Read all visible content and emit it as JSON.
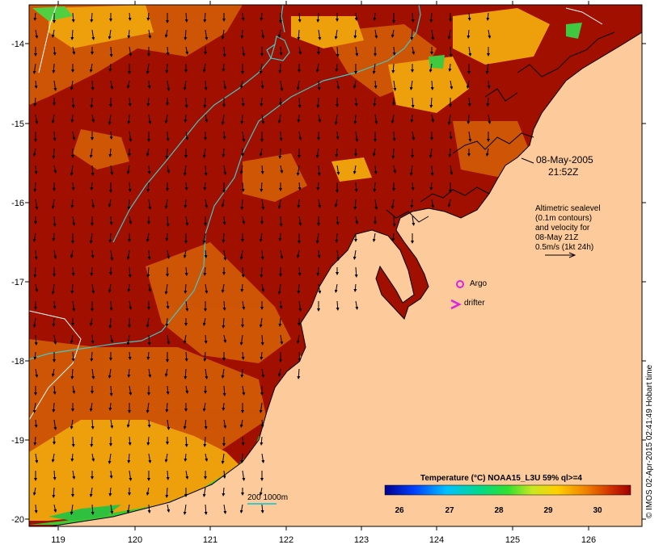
{
  "annotation": {
    "date": "08-May-2005",
    "time": "21:52Z",
    "altimetry_lines": [
      "Altimetric sealevel",
      "(0.1m contours)",
      "and velocity for",
      "08-May 21Z",
      "0.5m/s (1kt 24h)"
    ],
    "argo_label": "Argo",
    "drifter_label": "drifter",
    "isobath_label": "200  1000m"
  },
  "colorbar": {
    "title": "Temperature (°C) NOAA15_L3U 59% ql>=4",
    "ticks": [
      "26",
      "27",
      "28",
      "29",
      "30"
    ]
  },
  "axes": {
    "lon_ticks": [
      "119",
      "120",
      "121",
      "122",
      "123",
      "124",
      "125",
      "126"
    ],
    "lat_ticks": [
      "-14",
      "-15",
      "-16",
      "-17",
      "-18",
      "-19",
      "-20"
    ]
  },
  "credit": "© IMOS 02-Apr-2015 02:41:49 Hobart time",
  "colors": {
    "land": "#fdcb9b",
    "sst_hot": "#a00f00",
    "sst_warm": "#d25a06",
    "sst_mid": "#eea00c",
    "sst_cool": "#30c040",
    "contour": "#40c8c8",
    "argo": "#e020e0"
  }
}
